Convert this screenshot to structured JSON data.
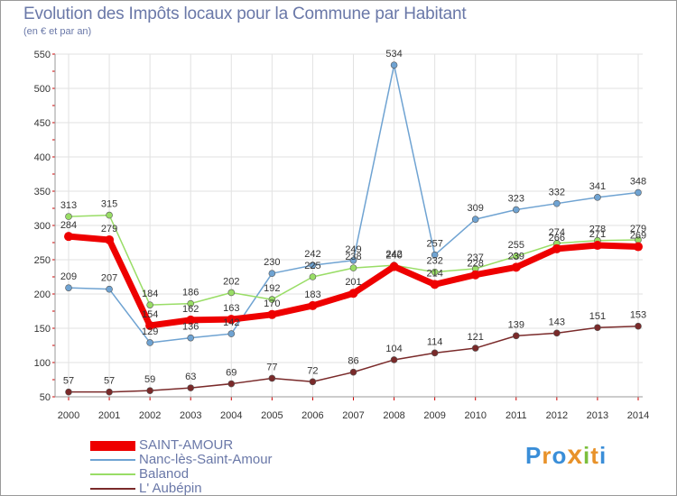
{
  "title": "Evolution des Impôts locaux pour la Commune par Habitant",
  "subtitle": "(en € et par an)",
  "logo": {
    "text": "Proxiti",
    "letters": [
      "P",
      "r",
      "o",
      "x",
      "i",
      "t",
      "i"
    ],
    "colors": [
      "#3a8ed8",
      "#e8922a",
      "#3a8ed8",
      "#e8922a",
      "#7cbf3c",
      "#e8922a",
      "#3a8ed8"
    ]
  },
  "chart_data": {
    "type": "line",
    "title": "Evolution des Impôts locaux pour la Commune par Habitant",
    "subtitle": "(en € et par an)",
    "x": [
      2000,
      2001,
      2002,
      2003,
      2004,
      2005,
      2006,
      2007,
      2008,
      2009,
      2010,
      2011,
      2012,
      2013,
      2014
    ],
    "ylim": [
      50,
      550
    ],
    "yticks": [
      50,
      100,
      150,
      200,
      250,
      300,
      350,
      400,
      450,
      500,
      550
    ],
    "grid": true,
    "legend_position": "bottom-left",
    "series": [
      {
        "name": "SAINT-AMOUR",
        "color": "#ee0000",
        "width": 7,
        "marker": 5,
        "values": [
          284,
          279,
          154,
          162,
          163,
          170,
          183,
          201,
          240,
          214,
          228,
          239,
          266,
          271,
          269
        ]
      },
      {
        "name": "Nanc-lès-Saint-Amour",
        "color": "#6fa3d2",
        "width": 1.5,
        "marker": 3.5,
        "values": [
          209,
          207,
          129,
          136,
          142,
          230,
          242,
          249,
          534,
          257,
          309,
          323,
          332,
          341,
          348
        ]
      },
      {
        "name": "Balanod",
        "color": "#99dd66",
        "width": 1.5,
        "marker": 3.5,
        "values": [
          313,
          315,
          184,
          186,
          202,
          192,
          225,
          238,
          242,
          232,
          237,
          255,
          274,
          278,
          279
        ]
      },
      {
        "name": "L' Aubépin",
        "color": "#7a2a2a",
        "width": 1.5,
        "marker": 3.5,
        "values": [
          57,
          57,
          59,
          63,
          69,
          77,
          72,
          86,
          104,
          114,
          121,
          139,
          143,
          151,
          153
        ]
      }
    ]
  }
}
